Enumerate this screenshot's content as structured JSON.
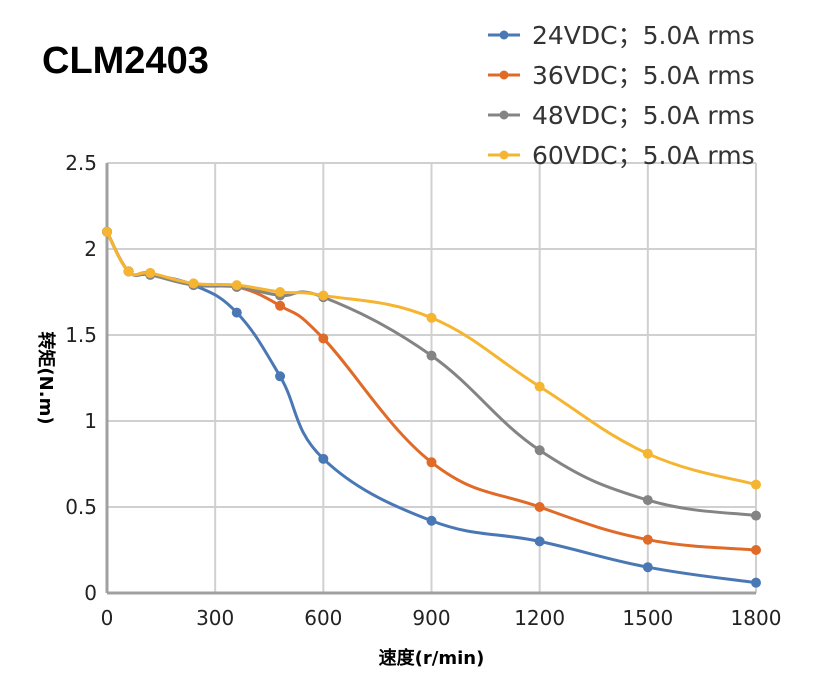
{
  "chart_data": {
    "type": "line",
    "title": "CLM2403",
    "xlabel": "速度(r/min)",
    "ylabel": "转矩(N.m)",
    "xlim": [
      0,
      1800
    ],
    "ylim": [
      0,
      2.5
    ],
    "xticks": [
      0,
      300,
      600,
      900,
      1200,
      1500,
      1800
    ],
    "yticks": [
      "0",
      "0.5",
      "1",
      "1.5",
      "2",
      "2.5"
    ],
    "grid": true,
    "legend": "top-right",
    "x": [
      0,
      60,
      120,
      240,
      360,
      480,
      600,
      900,
      1200,
      1500,
      1800
    ],
    "series": [
      {
        "name": "24VDC；5.0A rms",
        "color": "#4a78b5",
        "values": [
          2.1,
          1.87,
          1.85,
          1.79,
          1.63,
          1.26,
          0.78,
          0.42,
          0.3,
          0.15,
          0.06
        ]
      },
      {
        "name": "36VDC；5.0A rms",
        "color": "#e06a27",
        "values": [
          2.1,
          1.87,
          1.86,
          1.79,
          1.78,
          1.67,
          1.48,
          0.76,
          0.5,
          0.31,
          0.25
        ]
      },
      {
        "name": "48VDC；5.0A rms",
        "color": "#848484",
        "values": [
          2.1,
          1.87,
          1.85,
          1.79,
          1.78,
          1.73,
          1.72,
          1.38,
          0.83,
          0.54,
          0.45
        ]
      },
      {
        "name": "60VDC；5.0A rms",
        "color": "#f5b531",
        "values": [
          2.1,
          1.87,
          1.86,
          1.8,
          1.79,
          1.75,
          1.73,
          1.6,
          1.2,
          0.81,
          0.63
        ]
      }
    ]
  }
}
